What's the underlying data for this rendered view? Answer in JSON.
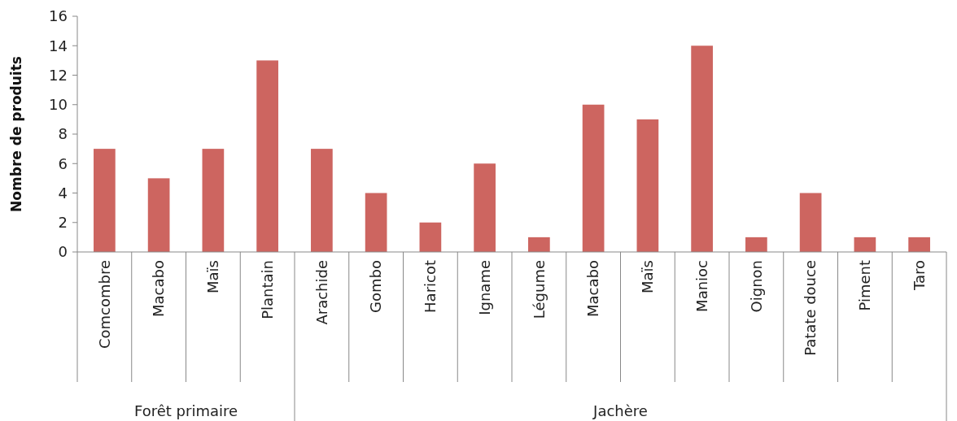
{
  "chart_data": {
    "type": "bar",
    "ylabel": "Nombre de produits",
    "categories": [
      "Comcombre",
      "Macabo",
      "Maïs",
      "Plantain",
      "Arachide",
      "Gombo",
      "Haricot",
      "Igname",
      "Légume",
      "Macabo",
      "Maïs",
      "Manioc",
      "Oignon",
      "Patate douce",
      "Piment",
      "Taro"
    ],
    "values": [
      7,
      5,
      7,
      13,
      7,
      4,
      2,
      6,
      1,
      10,
      9,
      14,
      1,
      4,
      1,
      1
    ],
    "color": "#cd6560",
    "ylim": [
      0,
      16
    ],
    "yticks": [
      0,
      2,
      4,
      6,
      8,
      10,
      12,
      14,
      16
    ],
    "grid": false,
    "annotations": [
      "Forêt primaire",
      "Jachère"
    ]
  }
}
